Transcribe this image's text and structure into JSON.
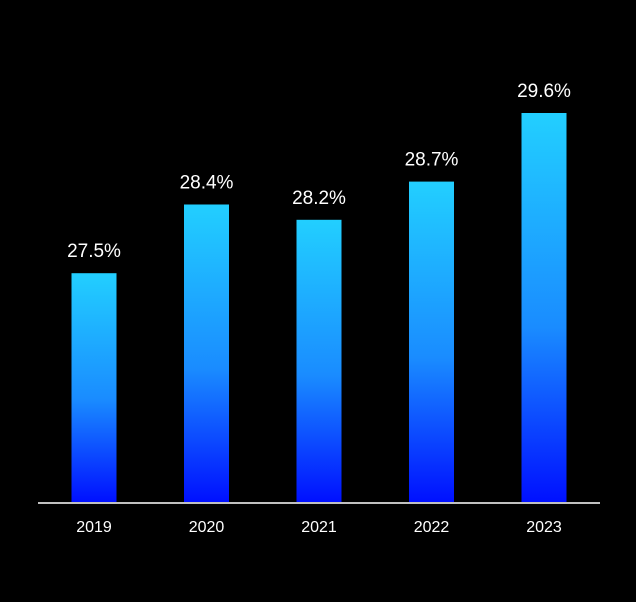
{
  "chart_data": {
    "type": "bar",
    "title": "",
    "xlabel": "",
    "ylabel": "",
    "categories": [
      "2019",
      "2020",
      "2021",
      "2022",
      "2023"
    ],
    "values": [
      27.5,
      28.4,
      28.2,
      28.7,
      29.6
    ],
    "value_labels": [
      "27.5%",
      "28.4%",
      "28.2%",
      "28.7%",
      "29.6%"
    ],
    "ylim": [
      24.5,
      29.6
    ],
    "grid": false,
    "legend": "none",
    "colors": {
      "background": "#000000",
      "bar_top": "#22cfff",
      "bar_bottom": "#0010ff",
      "axis": "#ffffff",
      "text": "#ffffff"
    }
  }
}
